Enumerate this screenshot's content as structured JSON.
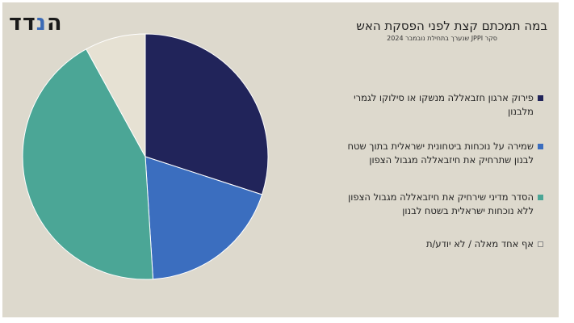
{
  "logo": {
    "text_main": "ה",
    "text_accent": "",
    "text_tail": ""
  },
  "chart_data": {
    "type": "pie",
    "title": "במה תמכתם קצת לפני הפסקת האש",
    "subtitle": "סקר JPPI שנערך בתחילת נובמבר 2024",
    "categories": [
      "פירוק ארגון חזבאללה מנשקו או סילוקו לגמרי מלבנון",
      "שמירה על נוכחות ביטחונית ישראלית בתוך שטח לבנון שתרחיק את חיזבאללה מגבול הצפון",
      "הסדר מדיני שירחיק את חיזבאללה מגבול הצפון ללא נוכחות ישראלית בשטח לבנון",
      "אף אחד מאלה / לא יודע/ת"
    ],
    "values": [
      30,
      19,
      43,
      8
    ],
    "colors": [
      "#21245a",
      "#3b6ebf",
      "#4ba696",
      "#e6e1d3"
    ],
    "legend_position": "right"
  }
}
